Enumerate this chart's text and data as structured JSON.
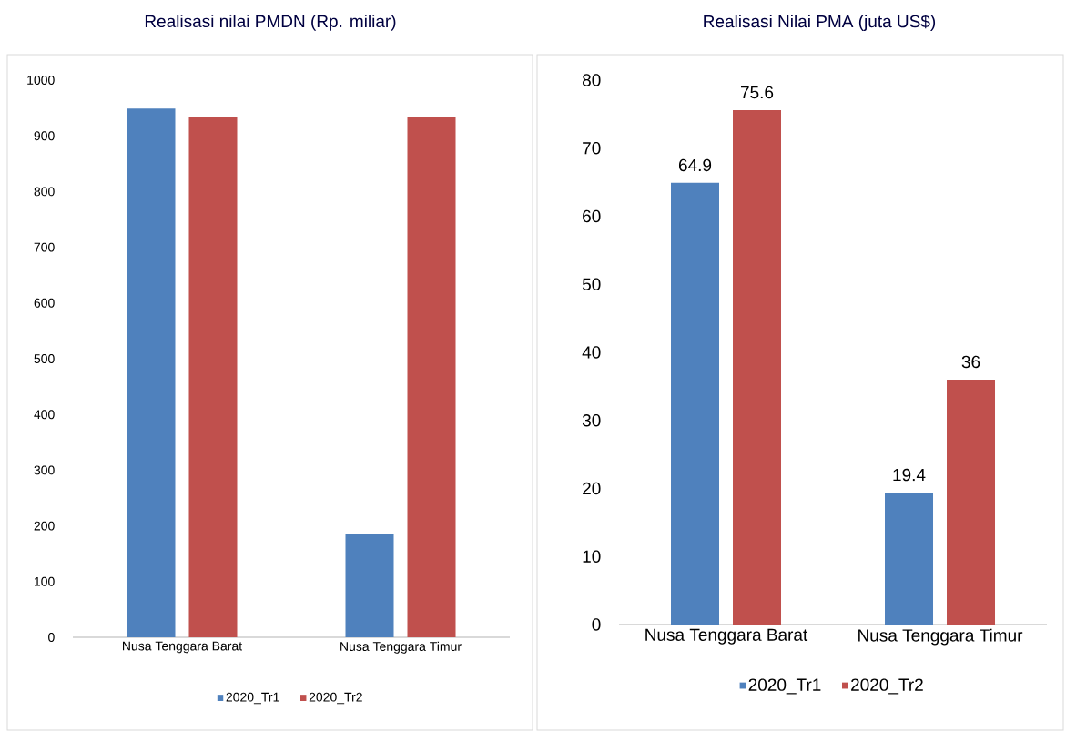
{
  "chart_data": [
    {
      "type": "bar",
      "title": "Realisasi nilai PMDN (Rp. miliar)",
      "categories": [
        "Nusa Tenggara Barat",
        "Nusa Tenggara Timur"
      ],
      "series": [
        {
          "name": "2020_Tr1",
          "color": "#4f81bd",
          "values": [
            949,
            186
          ]
        },
        {
          "name": "2020_Tr2",
          "color": "#c0504d",
          "values": [
            933,
            934
          ]
        }
      ],
      "ylim": [
        0,
        1000
      ],
      "yticks": [
        0,
        100,
        200,
        300,
        400,
        500,
        600,
        700,
        800,
        900,
        1000
      ],
      "grid": false,
      "legend": "bottom"
    },
    {
      "type": "bar",
      "title": "Realisasi Nilai PMA (juta US$)",
      "categories": [
        "Nusa Tenggara Barat",
        "Nusa Tenggara Timur"
      ],
      "series": [
        {
          "name": "2020_Tr1",
          "color": "#4f81bd",
          "values": [
            64.9,
            19.4
          ]
        },
        {
          "name": "2020_Tr2",
          "color": "#c0504d",
          "values": [
            75.6,
            36
          ]
        }
      ],
      "ylim": [
        0,
        80
      ],
      "yticks": [
        0,
        10,
        20,
        30,
        40,
        50,
        60,
        70,
        80
      ],
      "grid": false,
      "legend": "bottom",
      "data_labels": true
    }
  ]
}
